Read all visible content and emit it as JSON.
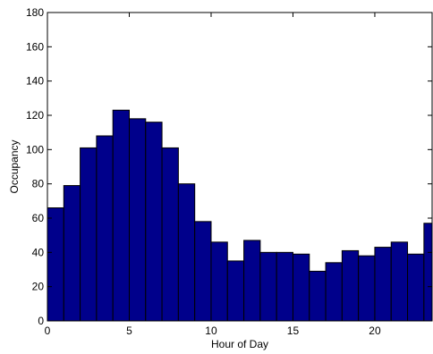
{
  "chart_data": {
    "type": "bar",
    "title": "",
    "xlabel": "Hour of Day",
    "ylabel": "Occupancy",
    "x": [
      0,
      1,
      2,
      3,
      4,
      5,
      6,
      7,
      8,
      9,
      10,
      11,
      12,
      13,
      14,
      15,
      16,
      17,
      18,
      19,
      20,
      21,
      22,
      23
    ],
    "values": [
      66,
      79,
      101,
      108,
      123,
      118,
      116,
      101,
      80,
      58,
      46,
      35,
      47,
      40,
      40,
      39,
      29,
      34,
      41,
      38,
      43,
      46,
      39,
      57
    ],
    "xlim": [
      0,
      23.5
    ],
    "ylim": [
      0,
      180
    ],
    "xticks": [
      0,
      5,
      10,
      15,
      20
    ],
    "yticks": [
      0,
      20,
      40,
      60,
      80,
      100,
      120,
      140,
      160,
      180
    ],
    "grid": false,
    "bar_color": "#00008b",
    "edge_color": "#000000"
  }
}
